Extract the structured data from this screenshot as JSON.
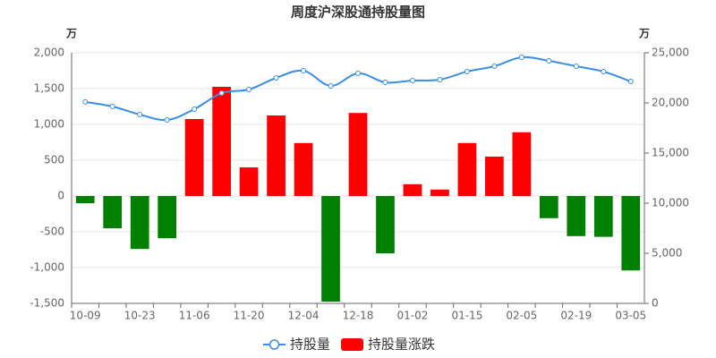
{
  "chart_data": {
    "type": "bar_line",
    "title": "周度沪深股通持股量图",
    "y_unit": "万",
    "y2_unit": "万",
    "categories": [
      "10-09",
      null,
      "10-23",
      null,
      "11-06",
      null,
      "11-20",
      null,
      "12-04",
      null,
      "12-18",
      null,
      "01-02",
      null,
      "01-15",
      null,
      "02-05",
      null,
      "02-19",
      null,
      "03-05"
    ],
    "series": [
      {
        "name": "持股量",
        "type": "line",
        "axis": "y2",
        "color": "#3a8ee6",
        "values": [
          20100,
          19640,
          18840,
          18300,
          19380,
          20980,
          21340,
          22500,
          23210,
          21700,
          22950,
          22050,
          22230,
          22320,
          23130,
          23660,
          24550,
          24200,
          23660,
          23130,
          22140
        ]
      },
      {
        "name": "持股量涨跌",
        "type": "bar",
        "axis": "y",
        "color": "#ff0000",
        "negative_color": "#008000",
        "values": [
          -100,
          -450,
          -740,
          -590,
          1075,
          1525,
          400,
          1125,
          740,
          -1475,
          1160,
          -800,
          165,
          90,
          740,
          550,
          890,
          -310,
          -560,
          -570,
          -1040
        ]
      }
    ],
    "ylim": [
      -1500,
      2000
    ],
    "yticks": [
      {
        "value": -1500,
        "label": "-1,500"
      },
      {
        "value": -1000,
        "label": "-1,000"
      },
      -500,
      0,
      500,
      {
        "value": 1000,
        "label": "1,000"
      },
      {
        "value": 1500,
        "label": "1,500"
      },
      {
        "value": 2000,
        "label": "2,000"
      }
    ],
    "y2lim": [
      0,
      25000
    ],
    "y2ticks": [
      0,
      {
        "value": 5000,
        "label": "5,000"
      },
      {
        "value": 10000,
        "label": "10,000"
      },
      {
        "value": 15000,
        "label": "15,000"
      },
      {
        "value": 20000,
        "label": "20,000"
      },
      {
        "value": 25000,
        "label": "25,000"
      }
    ],
    "legend": "bottom"
  }
}
